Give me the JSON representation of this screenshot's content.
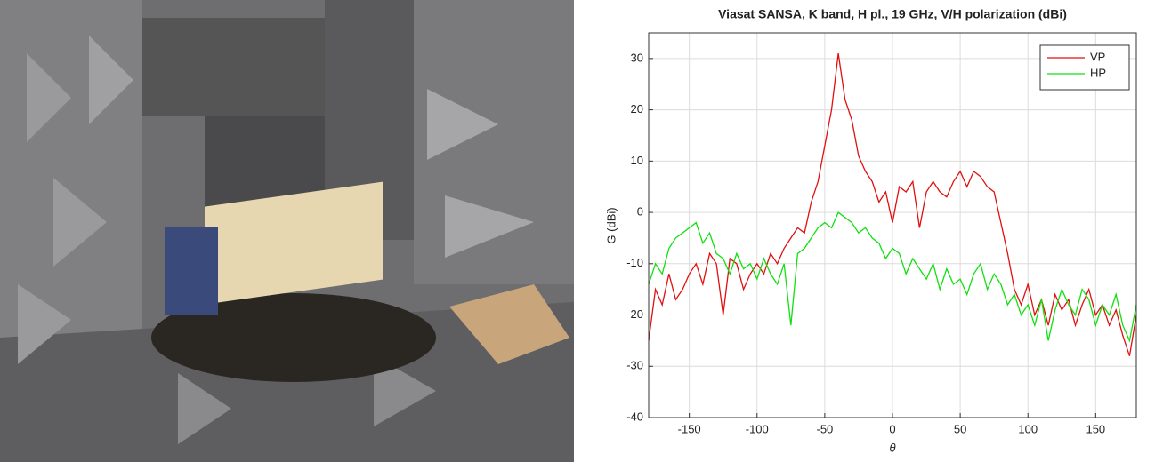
{
  "chart_data": {
    "type": "line",
    "title": "Viasat SANSA, K band, H pl., 19 GHz, V/H polarization (dBi)",
    "x_label": "θ",
    "y_label": "G (dBi)",
    "x": [
      -180,
      -175,
      -170,
      -165,
      -160,
      -155,
      -150,
      -145,
      -140,
      -135,
      -130,
      -125,
      -120,
      -115,
      -110,
      -105,
      -100,
      -95,
      -90,
      -85,
      -80,
      -75,
      -70,
      -65,
      -60,
      -55,
      -50,
      -45,
      -40,
      -35,
      -30,
      -25,
      -20,
      -15,
      -10,
      -5,
      0,
      5,
      10,
      15,
      20,
      25,
      30,
      35,
      40,
      45,
      50,
      55,
      60,
      65,
      70,
      75,
      80,
      85,
      90,
      95,
      100,
      105,
      110,
      115,
      120,
      125,
      130,
      135,
      140,
      145,
      150,
      155,
      160,
      165,
      170,
      175,
      180
    ],
    "series": [
      {
        "name": "VP",
        "color": "#e01010",
        "values": [
          -25,
          -15,
          -18,
          -12,
          -17,
          -15,
          -12,
          -10,
          -14,
          -8,
          -10,
          -20,
          -9,
          -10,
          -15,
          -12,
          -10,
          -12,
          -8,
          -10,
          -7,
          -5,
          -3,
          -4,
          2,
          6,
          13,
          20,
          31,
          22,
          18,
          11,
          8,
          6,
          2,
          4,
          -2,
          5,
          4,
          6,
          -3,
          4,
          6,
          4,
          3,
          6,
          8,
          5,
          8,
          7,
          5,
          4,
          -2,
          -8,
          -15,
          -18,
          -14,
          -20,
          -17,
          -22,
          -16,
          -19,
          -17,
          -22,
          -18,
          -15,
          -20,
          -18,
          -22,
          -19,
          -24,
          -28,
          -20
        ]
      },
      {
        "name": "HP",
        "color": "#10e010",
        "values": [
          -14,
          -10,
          -12,
          -7,
          -5,
          -4,
          -3,
          -2,
          -6,
          -4,
          -8,
          -9,
          -12,
          -8,
          -11,
          -10,
          -13,
          -9,
          -12,
          -14,
          -10,
          -22,
          -8,
          -7,
          -5,
          -3,
          -2,
          -3,
          0,
          -1,
          -2,
          -4,
          -3,
          -5,
          -6,
          -9,
          -7,
          -8,
          -12,
          -9,
          -11,
          -13,
          -10,
          -15,
          -11,
          -14,
          -13,
          -16,
          -12,
          -10,
          -15,
          -12,
          -14,
          -18,
          -16,
          -20,
          -18,
          -22,
          -17,
          -25,
          -19,
          -15,
          -18,
          -20,
          -15,
          -17,
          -22,
          -18,
          -20,
          -16,
          -22,
          -25,
          -18
        ]
      }
    ],
    "xlim": [
      -180,
      180
    ],
    "xticks": [
      -150,
      -100,
      -50,
      0,
      50,
      100,
      150
    ],
    "ylim": [
      -40,
      35
    ],
    "yticks": [
      -40,
      -30,
      -20,
      -10,
      0,
      10,
      20,
      30
    ],
    "grid": true,
    "legend": "upper right"
  }
}
